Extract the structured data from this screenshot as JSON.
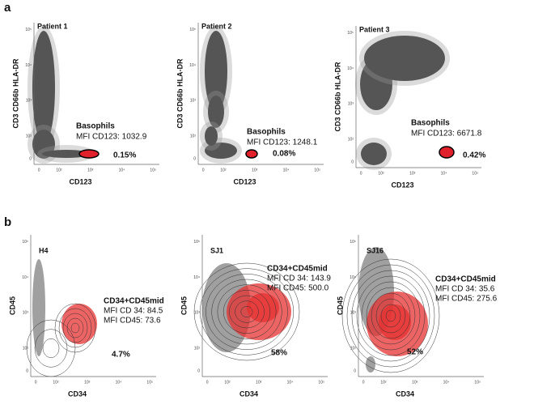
{
  "panel_a": {
    "label": "a",
    "ticks": [
      "0",
      "10²",
      "10³",
      "10⁴",
      "10⁵"
    ],
    "plots": [
      {
        "title": "Patient 1",
        "y_label": "CD3 CD66b HLA-DR",
        "x_label": "CD123",
        "population": "Basophils",
        "mfi": "MFI CD123: 1032.9",
        "percent": "0.15%"
      },
      {
        "title": "Patient 2",
        "y_label": "CD3 CD66b HLA-DR",
        "x_label": "CD123",
        "population": "Basophils",
        "mfi": "MFI CD123: 1248.1",
        "percent": "0.08%"
      },
      {
        "title": "Patient 3",
        "y_label": "CD3 CD66b HLA-DR",
        "x_label": "CD123",
        "population": "Basophils",
        "mfi": "MFI CD123: 6671.8",
        "percent": "0.42%"
      }
    ]
  },
  "panel_b": {
    "label": "b",
    "ticks": [
      "0",
      "10²",
      "10³",
      "10⁴",
      "10⁵"
    ],
    "plots": [
      {
        "title": "H4",
        "y_label": "CD45",
        "x_label": "CD34",
        "population": "CD34+CD45mid",
        "mfi_cd34": "MFI CD 34: 84.5",
        "mfi_cd45": "MFI CD45:  73.6",
        "percent": "4.7%"
      },
      {
        "title": "SJ1",
        "y_label": "CD45",
        "x_label": "CD34",
        "population": "CD34+CD45mid",
        "mfi_cd34": "MFI CD 34: 143.9",
        "mfi_cd45": "MFI CD45:  500.0",
        "percent": "58%"
      },
      {
        "title": "SJ16",
        "y_label": "CD45",
        "x_label": "CD34",
        "population": "CD34+CD45mid",
        "mfi_cd34": "MFI CD 34: 35.6",
        "mfi_cd45": "MFI CD45:  275.6",
        "percent": "52%"
      }
    ]
  }
}
